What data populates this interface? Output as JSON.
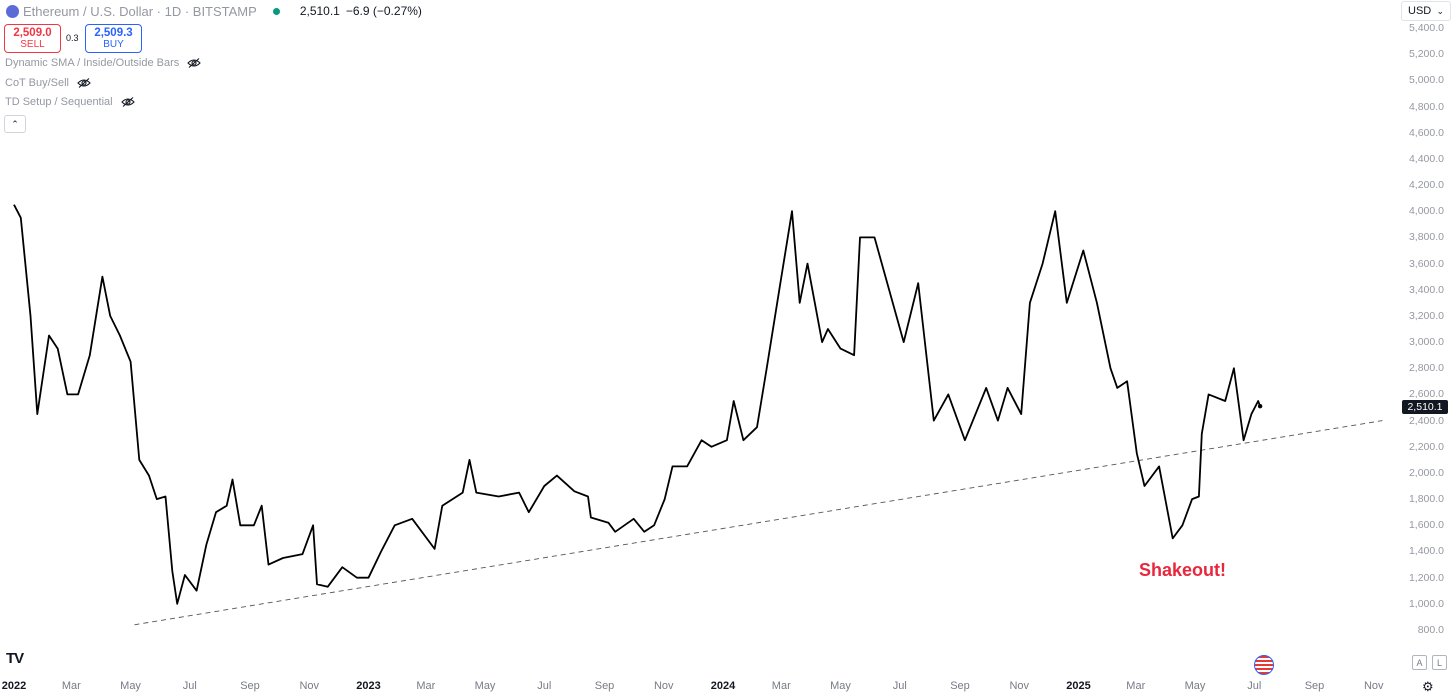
{
  "header": {
    "symbol": "Ethereum / U.S. Dollar · 1D · BITSTAMP",
    "last_price": "2,510.1",
    "change": "−6.9 (−0.27%)"
  },
  "trade": {
    "sell_price": "2,509.0",
    "sell_label": "SELL",
    "spread": "0.3",
    "buy_price": "2,509.3",
    "buy_label": "BUY"
  },
  "indicators": [
    {
      "name": "Dynamic SMA / Inside/Outside Bars"
    },
    {
      "name": "CoT Buy/Sell"
    },
    {
      "name": "TD Setup / Sequential"
    }
  ],
  "currency": "USD",
  "price_tag": "2,510.1",
  "annotation": "Shakeout!",
  "colors": {
    "line": "#000000",
    "annotation": "#e8273c",
    "trendline": "#555555"
  },
  "chart_data": {
    "type": "line",
    "y_ticks": [
      "5,400.0",
      "5,200.0",
      "5,000.0",
      "4,800.0",
      "4,600.0",
      "4,400.0",
      "4,200.0",
      "4,000.0",
      "3,800.0",
      "3,600.0",
      "3,400.0",
      "3,200.0",
      "3,000.0",
      "2,800.0",
      "2,600.0",
      "2,400.0",
      "2,200.0",
      "2,000.0",
      "1,800.0",
      "1,600.0",
      "1,400.0",
      "1,200.0",
      "1,000.0",
      "800.0"
    ],
    "x_ticks": [
      {
        "label": "2022",
        "bold": true
      },
      {
        "label": "Mar"
      },
      {
        "label": "May"
      },
      {
        "label": "Jul"
      },
      {
        "label": "Sep"
      },
      {
        "label": "Nov"
      },
      {
        "label": "2023",
        "bold": true
      },
      {
        "label": "Mar"
      },
      {
        "label": "May"
      },
      {
        "label": "Jul"
      },
      {
        "label": "Sep"
      },
      {
        "label": "Nov"
      },
      {
        "label": "2024",
        "bold": true
      },
      {
        "label": "Mar"
      },
      {
        "label": "May"
      },
      {
        "label": "Jul"
      },
      {
        "label": "Sep"
      },
      {
        "label": "Nov"
      },
      {
        "label": "2025",
        "bold": true
      },
      {
        "label": "Mar"
      },
      {
        "label": "May"
      },
      {
        "label": "Jul"
      },
      {
        "label": "Sep"
      },
      {
        "label": "Nov"
      }
    ],
    "ylim": [
      800,
      5400
    ],
    "series": [
      {
        "values": [
          [
            "2022-01-01",
            4050
          ],
          [
            "2022-01-08",
            3950
          ],
          [
            "2022-01-18",
            3200
          ],
          [
            "2022-01-25",
            2450
          ],
          [
            "2022-02-06",
            3050
          ],
          [
            "2022-02-15",
            2950
          ],
          [
            "2022-02-25",
            2600
          ],
          [
            "2022-03-08",
            2600
          ],
          [
            "2022-03-20",
            2900
          ],
          [
            "2022-04-02",
            3500
          ],
          [
            "2022-04-10",
            3200
          ],
          [
            "2022-04-20",
            3050
          ],
          [
            "2022-05-01",
            2850
          ],
          [
            "2022-05-10",
            2100
          ],
          [
            "2022-05-20",
            1980
          ],
          [
            "2022-05-28",
            1800
          ],
          [
            "2022-06-06",
            1820
          ],
          [
            "2022-06-13",
            1250
          ],
          [
            "2022-06-18",
            1000
          ],
          [
            "2022-06-26",
            1220
          ],
          [
            "2022-07-08",
            1100
          ],
          [
            "2022-07-18",
            1450
          ],
          [
            "2022-07-28",
            1700
          ],
          [
            "2022-08-08",
            1750
          ],
          [
            "2022-08-14",
            1950
          ],
          [
            "2022-08-22",
            1600
          ],
          [
            "2022-09-05",
            1600
          ],
          [
            "2022-09-13",
            1750
          ],
          [
            "2022-09-20",
            1300
          ],
          [
            "2022-10-05",
            1350
          ],
          [
            "2022-10-25",
            1380
          ],
          [
            "2022-11-05",
            1600
          ],
          [
            "2022-11-09",
            1150
          ],
          [
            "2022-11-20",
            1130
          ],
          [
            "2022-12-05",
            1280
          ],
          [
            "2022-12-20",
            1200
          ],
          [
            "2023-01-01",
            1200
          ],
          [
            "2023-01-14",
            1400
          ],
          [
            "2023-01-28",
            1600
          ],
          [
            "2023-02-15",
            1650
          ],
          [
            "2023-03-10",
            1420
          ],
          [
            "2023-03-18",
            1750
          ],
          [
            "2023-04-08",
            1850
          ],
          [
            "2023-04-15",
            2100
          ],
          [
            "2023-04-22",
            1850
          ],
          [
            "2023-05-15",
            1820
          ],
          [
            "2023-06-05",
            1850
          ],
          [
            "2023-06-15",
            1700
          ],
          [
            "2023-07-01",
            1900
          ],
          [
            "2023-07-14",
            1980
          ],
          [
            "2023-08-01",
            1860
          ],
          [
            "2023-08-15",
            1820
          ],
          [
            "2023-08-18",
            1660
          ],
          [
            "2023-09-05",
            1620
          ],
          [
            "2023-09-12",
            1550
          ],
          [
            "2023-10-01",
            1650
          ],
          [
            "2023-10-12",
            1550
          ],
          [
            "2023-10-22",
            1600
          ],
          [
            "2023-11-02",
            1800
          ],
          [
            "2023-11-10",
            2050
          ],
          [
            "2023-11-25",
            2050
          ],
          [
            "2023-12-10",
            2250
          ],
          [
            "2023-12-20",
            2200
          ],
          [
            "2024-01-05",
            2250
          ],
          [
            "2024-01-12",
            2550
          ],
          [
            "2024-01-22",
            2250
          ],
          [
            "2024-02-05",
            2350
          ],
          [
            "2024-02-15",
            2800
          ],
          [
            "2024-02-28",
            3400
          ],
          [
            "2024-03-12",
            4000
          ],
          [
            "2024-03-20",
            3300
          ],
          [
            "2024-03-28",
            3600
          ],
          [
            "2024-04-12",
            3000
          ],
          [
            "2024-04-18",
            3100
          ],
          [
            "2024-05-01",
            2950
          ],
          [
            "2024-05-15",
            2900
          ],
          [
            "2024-05-21",
            3800
          ],
          [
            "2024-06-05",
            3800
          ],
          [
            "2024-06-20",
            3400
          ],
          [
            "2024-07-05",
            3000
          ],
          [
            "2024-07-20",
            3450
          ],
          [
            "2024-08-05",
            2400
          ],
          [
            "2024-08-20",
            2600
          ],
          [
            "2024-09-06",
            2250
          ],
          [
            "2024-09-28",
            2650
          ],
          [
            "2024-10-10",
            2400
          ],
          [
            "2024-10-20",
            2650
          ],
          [
            "2024-11-03",
            2450
          ],
          [
            "2024-11-12",
            3300
          ],
          [
            "2024-11-25",
            3600
          ],
          [
            "2024-12-08",
            4000
          ],
          [
            "2024-12-20",
            3300
          ],
          [
            "2025-01-06",
            3700
          ],
          [
            "2025-01-20",
            3300
          ],
          [
            "2025-02-03",
            2800
          ],
          [
            "2025-02-10",
            2650
          ],
          [
            "2025-02-20",
            2700
          ],
          [
            "2025-03-02",
            2150
          ],
          [
            "2025-03-10",
            1900
          ],
          [
            "2025-03-25",
            2050
          ],
          [
            "2025-04-08",
            1500
          ],
          [
            "2025-04-18",
            1600
          ],
          [
            "2025-04-28",
            1800
          ],
          [
            "2025-05-05",
            1820
          ],
          [
            "2025-05-08",
            2300
          ],
          [
            "2025-05-15",
            2600
          ],
          [
            "2025-06-01",
            2550
          ],
          [
            "2025-06-10",
            2800
          ],
          [
            "2025-06-20",
            2250
          ],
          [
            "2025-06-28",
            2450
          ],
          [
            "2025-07-05",
            2550
          ],
          [
            "2025-07-07",
            2510
          ]
        ]
      }
    ],
    "trendline": {
      "start": [
        "2022-05-05",
        840
      ],
      "end": [
        "2025-11-10",
        2400
      ],
      "style": "dashed"
    }
  }
}
